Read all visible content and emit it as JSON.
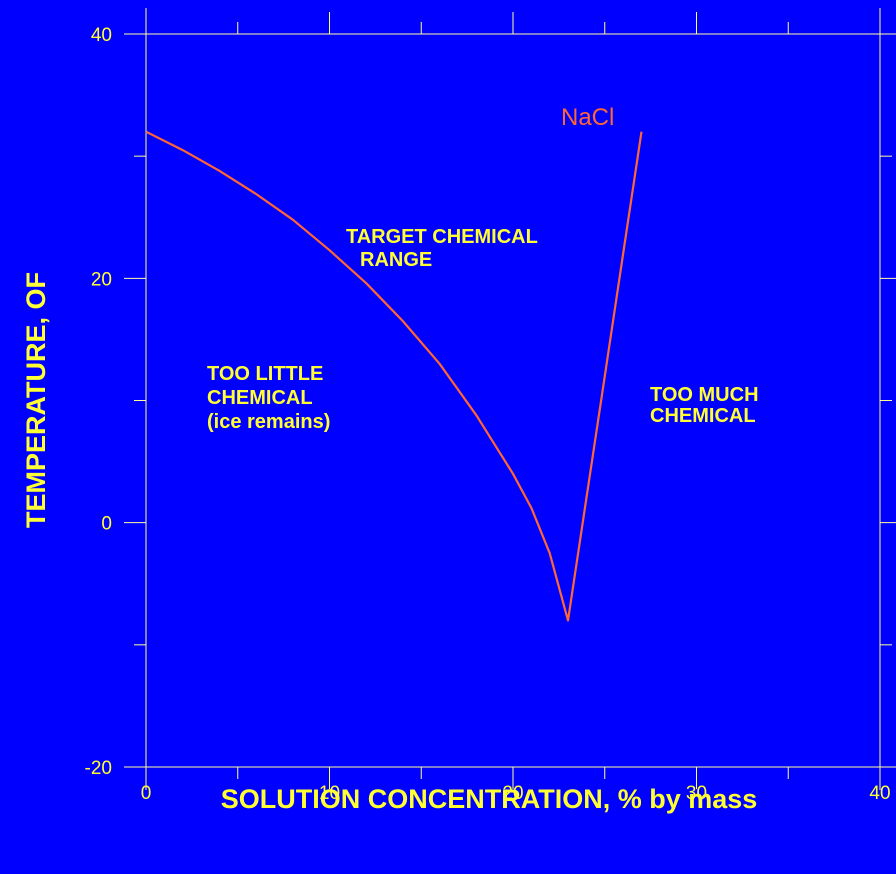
{
  "chart_data": {
    "type": "line",
    "title": "",
    "xlabel": "SOLUTION CONCENTRATION, % by mass",
    "ylabel": "TEMPERATURE, OF",
    "xlim": [
      0,
      40
    ],
    "ylim": [
      -20,
      40
    ],
    "x_ticks": [
      "0",
      "10",
      "20",
      "30",
      "40"
    ],
    "y_ticks": [
      "-20",
      "0",
      "20",
      "40"
    ],
    "grid": false,
    "series": [
      {
        "name": "NaCl",
        "color": "#ff6633",
        "points": [
          [
            0,
            32
          ],
          [
            2,
            30.5
          ],
          [
            4,
            28.8
          ],
          [
            6,
            26.9
          ],
          [
            8,
            24.8
          ],
          [
            10,
            22.3
          ],
          [
            12,
            19.6
          ],
          [
            14,
            16.5
          ],
          [
            16,
            13
          ],
          [
            18,
            8.8
          ],
          [
            20,
            4
          ],
          [
            21,
            1.2
          ],
          [
            22,
            -2.5
          ],
          [
            23,
            -8
          ],
          [
            24,
            2
          ],
          [
            25,
            12
          ],
          [
            26,
            22
          ],
          [
            27,
            32
          ]
        ]
      }
    ],
    "annotations": [
      {
        "lines": [
          "TARGET CHEMICAL",
          "RANGE"
        ]
      },
      {
        "lines": [
          "TOO LITTLE",
          "CHEMICAL",
          "(ice remains)"
        ]
      },
      {
        "lines": [
          "TOO MUCH",
          "CHEMICAL"
        ]
      }
    ]
  }
}
